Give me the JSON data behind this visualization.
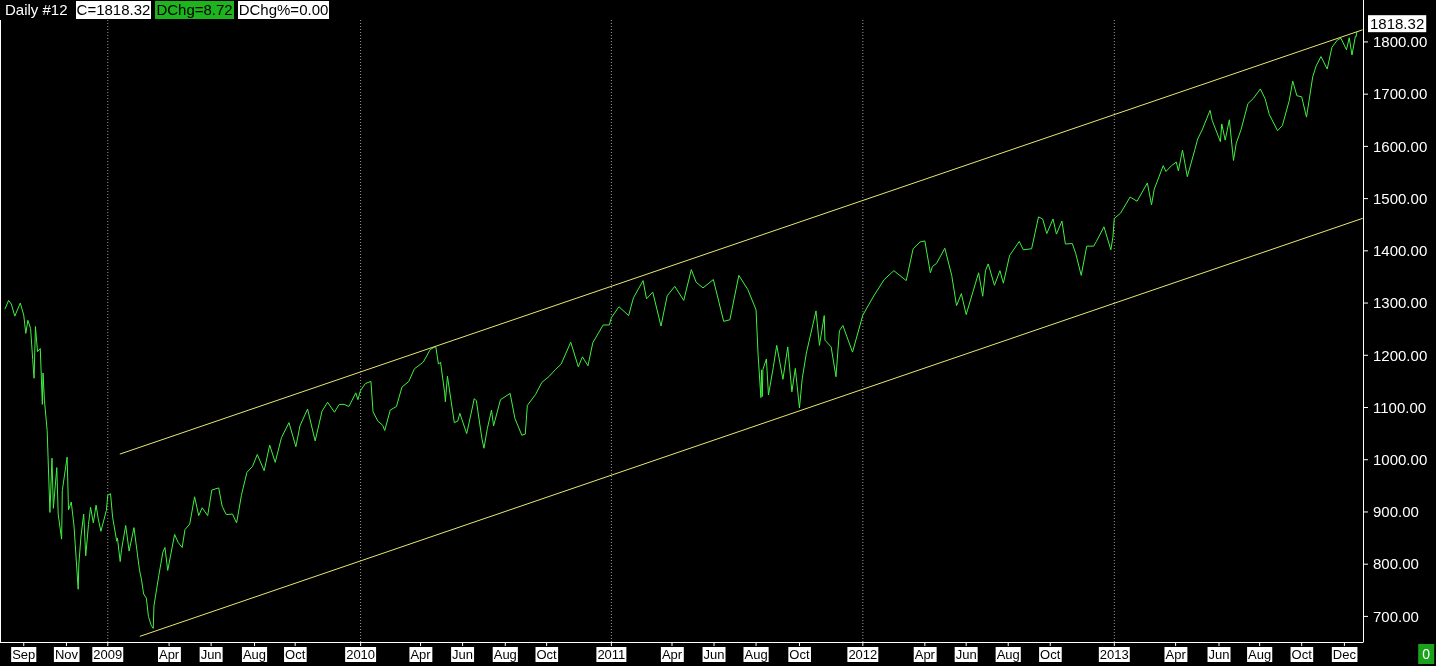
{
  "chart_data": {
    "type": "line",
    "title": "Daily #12",
    "annotations": [
      "C=1818.32",
      "DChg=8.72",
      "DChg%=0.00",
      {
        "text": "1818.32",
        "x": "2013-12-20",
        "y": 1818.32
      },
      "0"
    ],
    "series": [
      {
        "color": "#40f040",
        "x": [
          "2008-08-06",
          "2008-08-11",
          "2008-08-15",
          "2008-08-20",
          "2008-08-28",
          "2008-09-02",
          "2008-09-05",
          "2008-09-08",
          "2008-09-12",
          "2008-09-15",
          "2008-09-17",
          "2008-09-19",
          "2008-09-22",
          "2008-09-26",
          "2008-09-29",
          "2008-09-30",
          "2008-10-02",
          "2008-10-06",
          "2008-10-10",
          "2008-10-13",
          "2008-10-15",
          "2008-10-20",
          "2008-10-22",
          "2008-10-27",
          "2008-10-28",
          "2008-10-31",
          "2008-11-04",
          "2008-11-06",
          "2008-11-10",
          "2008-11-14",
          "2008-11-20",
          "2008-11-21",
          "2008-11-24",
          "2008-11-28",
          "2008-12-01",
          "2008-12-05",
          "2008-12-08",
          "2008-12-12",
          "2008-12-16",
          "2008-12-19",
          "2008-12-23",
          "2008-12-31",
          "2009-01-02",
          "2009-01-06",
          "2009-01-09",
          "2009-01-15",
          "2009-01-16",
          "2009-01-20",
          "2009-01-22",
          "2009-01-28",
          "2009-02-02",
          "2009-02-09",
          "2009-02-17",
          "2009-02-20",
          "2009-02-23",
          "2009-02-27",
          "2009-03-02",
          "2009-03-06",
          "2009-03-09",
          "2009-03-10",
          "2009-03-17",
          "2009-03-23",
          "2009-03-26",
          "2009-03-30",
          "2009-04-09",
          "2009-04-14",
          "2009-04-20",
          "2009-04-24",
          "2009-05-01",
          "2009-05-08",
          "2009-05-14",
          "2009-05-19",
          "2009-05-27",
          "2009-06-02",
          "2009-06-12",
          "2009-06-17",
          "2009-06-23",
          "2009-07-02",
          "2009-07-08",
          "2009-07-15",
          "2009-07-23",
          "2009-07-31",
          "2009-08-07",
          "2009-08-17",
          "2009-08-25",
          "2009-09-02",
          "2009-09-11",
          "2009-09-22",
          "2009-10-02",
          "2009-10-08",
          "2009-10-19",
          "2009-10-30",
          "2009-11-09",
          "2009-11-17",
          "2009-11-27",
          "2009-12-04",
          "2009-12-11",
          "2009-12-18",
          "2009-12-28",
          "2009-12-31",
          "2010-01-04",
          "2010-01-11",
          "2010-01-19",
          "2010-01-22",
          "2010-01-29",
          "2010-02-05",
          "2010-02-08",
          "2010-02-16",
          "2010-02-25",
          "2010-03-05",
          "2010-03-15",
          "2010-03-23",
          "2010-04-05",
          "2010-04-15",
          "2010-04-23",
          "2010-04-27",
          "2010-04-30",
          "2010-05-06",
          "2010-05-07",
          "2010-05-10",
          "2010-05-20",
          "2010-05-25",
          "2010-05-28",
          "2010-06-07",
          "2010-06-18",
          "2010-06-21",
          "2010-06-29",
          "2010-07-02",
          "2010-07-07",
          "2010-07-13",
          "2010-07-16",
          "2010-07-26",
          "2010-08-09",
          "2010-08-16",
          "2010-08-26",
          "2010-08-31",
          "2010-09-03",
          "2010-09-15",
          "2010-09-24",
          "2010-10-05",
          "2010-10-14",
          "2010-10-22",
          "2010-11-05",
          "2010-11-16",
          "2010-11-22",
          "2010-11-30",
          "2010-12-07",
          "2010-12-22",
          "2010-12-31",
          "2011-01-03",
          "2011-01-14",
          "2011-01-28",
          "2011-02-04",
          "2011-02-18",
          "2011-02-23",
          "2011-03-04",
          "2011-03-16",
          "2011-03-25",
          "2011-04-05",
          "2011-04-18",
          "2011-04-29",
          "2011-05-06",
          "2011-05-16",
          "2011-05-31",
          "2011-06-15",
          "2011-06-24",
          "2011-07-07",
          "2011-07-20",
          "2011-07-28",
          "2011-08-01",
          "2011-08-04",
          "2011-08-08",
          "2011-08-09",
          "2011-08-10",
          "2011-08-11",
          "2011-08-16",
          "2011-08-19",
          "2011-08-26",
          "2011-08-31",
          "2011-09-09",
          "2011-09-16",
          "2011-09-22",
          "2011-09-27",
          "2011-10-03",
          "2011-10-07",
          "2011-10-13",
          "2011-10-27",
          "2011-11-01",
          "2011-11-08",
          "2011-11-09",
          "2011-11-18",
          "2011-11-25",
          "2011-11-30",
          "2011-12-05",
          "2011-12-19",
          "2011-12-30",
          "2012-01-03",
          "2012-01-19",
          "2012-02-03",
          "2012-02-17",
          "2012-03-06",
          "2012-03-16",
          "2012-03-26",
          "2012-04-02",
          "2012-04-10",
          "2012-04-13",
          "2012-04-19",
          "2012-05-01",
          "2012-05-11",
          "2012-05-18",
          "2012-05-25",
          "2012-06-01",
          "2012-06-19",
          "2012-06-25",
          "2012-06-29",
          "2012-07-03",
          "2012-07-12",
          "2012-07-20",
          "2012-07-25",
          "2012-08-03",
          "2012-08-17",
          "2012-08-23",
          "2012-09-04",
          "2012-09-14",
          "2012-09-20",
          "2012-09-26",
          "2012-10-05",
          "2012-10-10",
          "2012-10-18",
          "2012-10-23",
          "2012-11-02",
          "2012-11-07",
          "2012-11-15",
          "2012-11-23",
          "2012-12-03",
          "2012-12-07",
          "2012-12-18",
          "2012-12-28",
          "2012-12-31",
          "2013-01-02",
          "2013-01-11",
          "2013-01-25",
          "2013-02-04",
          "2013-02-19",
          "2013-02-25",
          "2013-03-01",
          "2013-03-14",
          "2013-03-18",
          "2013-03-26",
          "2013-04-02",
          "2013-04-05",
          "2013-04-11",
          "2013-04-18",
          "2013-04-29",
          "2013-05-03",
          "2013-05-10",
          "2013-05-21",
          "2013-05-24",
          "2013-06-05",
          "2013-06-07",
          "2013-06-12",
          "2013-06-18",
          "2013-06-24",
          "2013-06-28",
          "2013-07-05",
          "2013-07-15",
          "2013-07-23",
          "2013-08-02",
          "2013-08-09",
          "2013-08-15",
          "2013-08-27",
          "2013-09-03",
          "2013-09-13",
          "2013-09-18",
          "2013-09-24",
          "2013-10-01",
          "2013-10-08",
          "2013-10-17",
          "2013-10-22",
          "2013-10-29",
          "2013-11-07",
          "2013-11-14",
          "2013-11-22",
          "2013-11-27",
          "2013-12-05",
          "2013-12-09",
          "2013-12-13",
          "2013-12-18",
          "2013-12-19",
          "2013-12-20"
        ],
        "values": [
          1289,
          1305,
          1298,
          1275,
          1300,
          1277,
          1242,
          1267,
          1251,
          1192,
          1156,
          1255,
          1207,
          1213,
          1106,
          1166,
          1114,
          1056,
          899,
          1003,
          907,
          985,
          896,
          848,
          941,
          969,
          1005,
          904,
          919,
          873,
          752,
          800,
          852,
          896,
          816,
          876,
          909,
          879,
          913,
          888,
          863,
          903,
          932,
          935,
          890,
          844,
          850,
          805,
          828,
          874,
          825,
          870,
          789,
          770,
          743,
          735,
          700,
          683,
          677,
          720,
          778,
          823,
          832,
          788,
          857,
          842,
          832,
          866,
          877,
          929,
          893,
          908,
          893,
          942,
          946,
          911,
          895,
          896,
          879,
          932,
          976,
          987,
          1010,
          979,
          1028,
          995,
          1042,
          1071,
          1025,
          1065,
          1097,
          1036,
          1093,
          1110,
          1091,
          1106,
          1106,
          1102,
          1128,
          1115,
          1133,
          1146,
          1150,
          1092,
          1074,
          1066,
          1056,
          1095,
          1102,
          1139,
          1150,
          1174,
          1187,
          1211,
          1217,
          1183,
          1187,
          1128,
          1111,
          1160,
          1071,
          1074,
          1089,
          1050,
          1117,
          1113,
          1041,
          1022,
          1060,
          1095,
          1065,
          1115,
          1127,
          1079,
          1047,
          1049,
          1104,
          1125,
          1148,
          1160,
          1173,
          1183,
          1225,
          1178,
          1197,
          1180,
          1224,
          1258,
          1258,
          1272,
          1293,
          1276,
          1310,
          1343,
          1308,
          1321,
          1256,
          1314,
          1332,
          1305,
          1364,
          1340,
          1329,
          1345,
          1265,
          1268,
          1353,
          1326,
          1300,
          1287,
          1200,
          1119,
          1172,
          1121,
          1173,
          1193,
          1124,
          1177,
          1219,
          1154,
          1216,
          1130,
          1175,
          1099,
          1155,
          1204,
          1285,
          1219,
          1276,
          1229,
          1216,
          1159,
          1247,
          1257,
          1206,
          1258,
          1277,
          1314,
          1345,
          1362,
          1343,
          1404,
          1417,
          1419,
          1358,
          1370,
          1376,
          1405,
          1353,
          1295,
          1318,
          1278,
          1358,
          1313,
          1362,
          1375,
          1334,
          1362,
          1338,
          1391,
          1418,
          1402,
          1404,
          1465,
          1461,
          1433,
          1461,
          1432,
          1457,
          1413,
          1414,
          1395,
          1353,
          1409,
          1409,
          1418,
          1446,
          1402,
          1426,
          1462,
          1472,
          1503,
          1495,
          1530,
          1488,
          1518,
          1563,
          1552,
          1563,
          1570,
          1553,
          1593,
          1542,
          1594,
          1614,
          1633,
          1669,
          1650,
          1609,
          1643,
          1612,
          1651,
          1573,
          1606,
          1632,
          1682,
          1692,
          1710,
          1691,
          1661,
          1630,
          1640,
          1688,
          1725,
          1697,
          1695,
          1656,
          1733,
          1754,
          1772,
          1748,
          1790,
          1804,
          1807,
          1785,
          1808,
          1775,
          1811,
          1810,
          1818.32
        ]
      },
      {
        "type": "line",
        "color": "#e8e870",
        "x": [
          "2009-01-20",
          "2013-12-28"
        ],
        "values": [
          1011,
          1823
        ]
      },
      {
        "type": "line",
        "color": "#e8e870",
        "x": [
          "2009-02-18",
          "2013-12-28"
        ],
        "values": [
          662,
          1462
        ]
      }
    ],
    "xlim": [
      "2008-07-31",
      "2013-12-29"
    ],
    "xticks": [
      {
        "value": "2008-09-02",
        "label": "Sep"
      },
      {
        "value": "2008-11-03",
        "label": "Nov"
      },
      {
        "value": "2009-01-02",
        "label": "2009"
      },
      {
        "value": "2009-04-01",
        "label": "Apr"
      },
      {
        "value": "2009-06-01",
        "label": "Jun"
      },
      {
        "value": "2009-08-03",
        "label": "Aug"
      },
      {
        "value": "2009-10-01",
        "label": "Oct"
      },
      {
        "value": "2010-01-04",
        "label": "2010"
      },
      {
        "value": "2010-04-01",
        "label": "Apr"
      },
      {
        "value": "2010-06-01",
        "label": "Jun"
      },
      {
        "value": "2010-08-02",
        "label": "Aug"
      },
      {
        "value": "2010-10-01",
        "label": "Oct"
      },
      {
        "value": "2011-01-03",
        "label": "2011"
      },
      {
        "value": "2011-04-01",
        "label": "Apr"
      },
      {
        "value": "2011-06-01",
        "label": "Jun"
      },
      {
        "value": "2011-08-01",
        "label": "Aug"
      },
      {
        "value": "2011-10-03",
        "label": "Oct"
      },
      {
        "value": "2012-01-03",
        "label": "2012"
      },
      {
        "value": "2012-04-02",
        "label": "Apr"
      },
      {
        "value": "2012-06-01",
        "label": "Jun"
      },
      {
        "value": "2012-08-01",
        "label": "Aug"
      },
      {
        "value": "2012-10-01",
        "label": "Oct"
      },
      {
        "value": "2013-01-02",
        "label": "2013"
      },
      {
        "value": "2013-04-01",
        "label": "Apr"
      },
      {
        "value": "2013-06-03",
        "label": "Jun"
      },
      {
        "value": "2013-08-01",
        "label": "Aug"
      },
      {
        "value": "2013-10-01",
        "label": "Oct"
      },
      {
        "value": "2013-12-02",
        "label": "Dec"
      }
    ],
    "ylim": [
      651,
      1842
    ],
    "yticks": [
      {
        "value": 700,
        "label": "700.00"
      },
      {
        "value": 800,
        "label": "800.00"
      },
      {
        "value": 900,
        "label": "900.00"
      },
      {
        "value": 1000,
        "label": "1000.00"
      },
      {
        "value": 1100,
        "label": "1100.00"
      },
      {
        "value": 1200,
        "label": "1200.00"
      },
      {
        "value": 1300,
        "label": "1300.00"
      },
      {
        "value": 1400,
        "label": "1400.00"
      },
      {
        "value": 1500,
        "label": "1500.00"
      },
      {
        "value": 1600,
        "label": "1600.00"
      },
      {
        "value": 1700,
        "label": "1700.00"
      },
      {
        "value": 1800,
        "label": "1800.00"
      }
    ],
    "ref_lines": [
      {
        "axis": "x",
        "value": "2009-01-02",
        "color": "#9a9a9a",
        "line_style": "dotted"
      },
      {
        "axis": "x",
        "value": "2010-01-04",
        "color": "#9a9a9a",
        "line_style": "dotted"
      },
      {
        "axis": "x",
        "value": "2011-01-03",
        "color": "#9a9a9a",
        "line_style": "dotted"
      },
      {
        "axis": "x",
        "value": "2012-01-03",
        "color": "#9a9a9a",
        "line_style": "dotted"
      },
      {
        "axis": "x",
        "value": "2013-01-02",
        "color": "#9a9a9a",
        "line_style": "dotted"
      }
    ]
  }
}
